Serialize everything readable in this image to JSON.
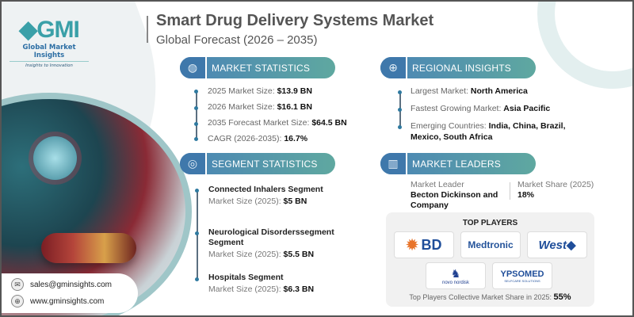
{
  "header": {
    "title": "Smart Drug Delivery Systems Market",
    "subtitle": "Global Forecast (2026 – 2035)"
  },
  "logo": {
    "mark": "GMI",
    "name": "Global Market Insights",
    "tagline": "Insights to Innovation"
  },
  "market_statistics": {
    "label": "MARKET STATISTICS",
    "icon": "globe-chart-icon",
    "items": [
      {
        "label": "2025 Market Size:",
        "value": "$13.9 BN"
      },
      {
        "label": "2026 Market Size:",
        "value": "$16.1 BN"
      },
      {
        "label": "2035 Forecast Market Size:",
        "value": "$64.5 BN"
      },
      {
        "label": "CAGR (2026-2035):",
        "value": "16.7%"
      }
    ]
  },
  "regional_insights": {
    "label": "REGIONAL INSIGHTS",
    "icon": "globe-icon",
    "items": [
      {
        "label": "Largest Market:",
        "value": "North America"
      },
      {
        "label": "Fastest Growing Market:",
        "value": "Asia Pacific"
      },
      {
        "label": "Emerging Countries:",
        "value": "India, China, Brazil,",
        "value2": "Mexico, South Africa"
      }
    ]
  },
  "segment_statistics": {
    "label": "SEGMENT STATISTICS",
    "icon": "target-chart-icon",
    "items": [
      {
        "name": "Connected Inhalers Segment",
        "size_label": "Market Size (2025):",
        "value": "$5 BN"
      },
      {
        "name": "Neurological Disorderssegment",
        "name2": "Segment",
        "size_label": "Market Size (2025):",
        "value": "$5.5 BN"
      },
      {
        "name": "Hospitals Segment",
        "size_label": "Market Size (2025):",
        "value": "$6.3 BN"
      }
    ]
  },
  "market_leaders": {
    "label": "MARKET LEADERS",
    "icon": "leader-chart-icon",
    "leader_label": "Market Leader",
    "leader_value": "Becton Dickinson and Company",
    "share_label": "Market Share (2025)",
    "share_value": "18%"
  },
  "top_players": {
    "title": "TOP PLAYERS",
    "players": [
      "BD",
      "Medtronic",
      "West",
      "novo nordisk",
      "YPSOMED"
    ],
    "ypsomed_tag": "SELFCARE SOLUTIONS",
    "footer_label": "Top Players Collective Market Share in 2025:",
    "footer_value": "55%"
  },
  "contact": {
    "email": "sales@gminsights.com",
    "website": "www.gminsights.com"
  },
  "colors": {
    "header_blue": "#3f78ab",
    "header_teal": "#5fa8a0",
    "brand": "#2c6ea4"
  }
}
